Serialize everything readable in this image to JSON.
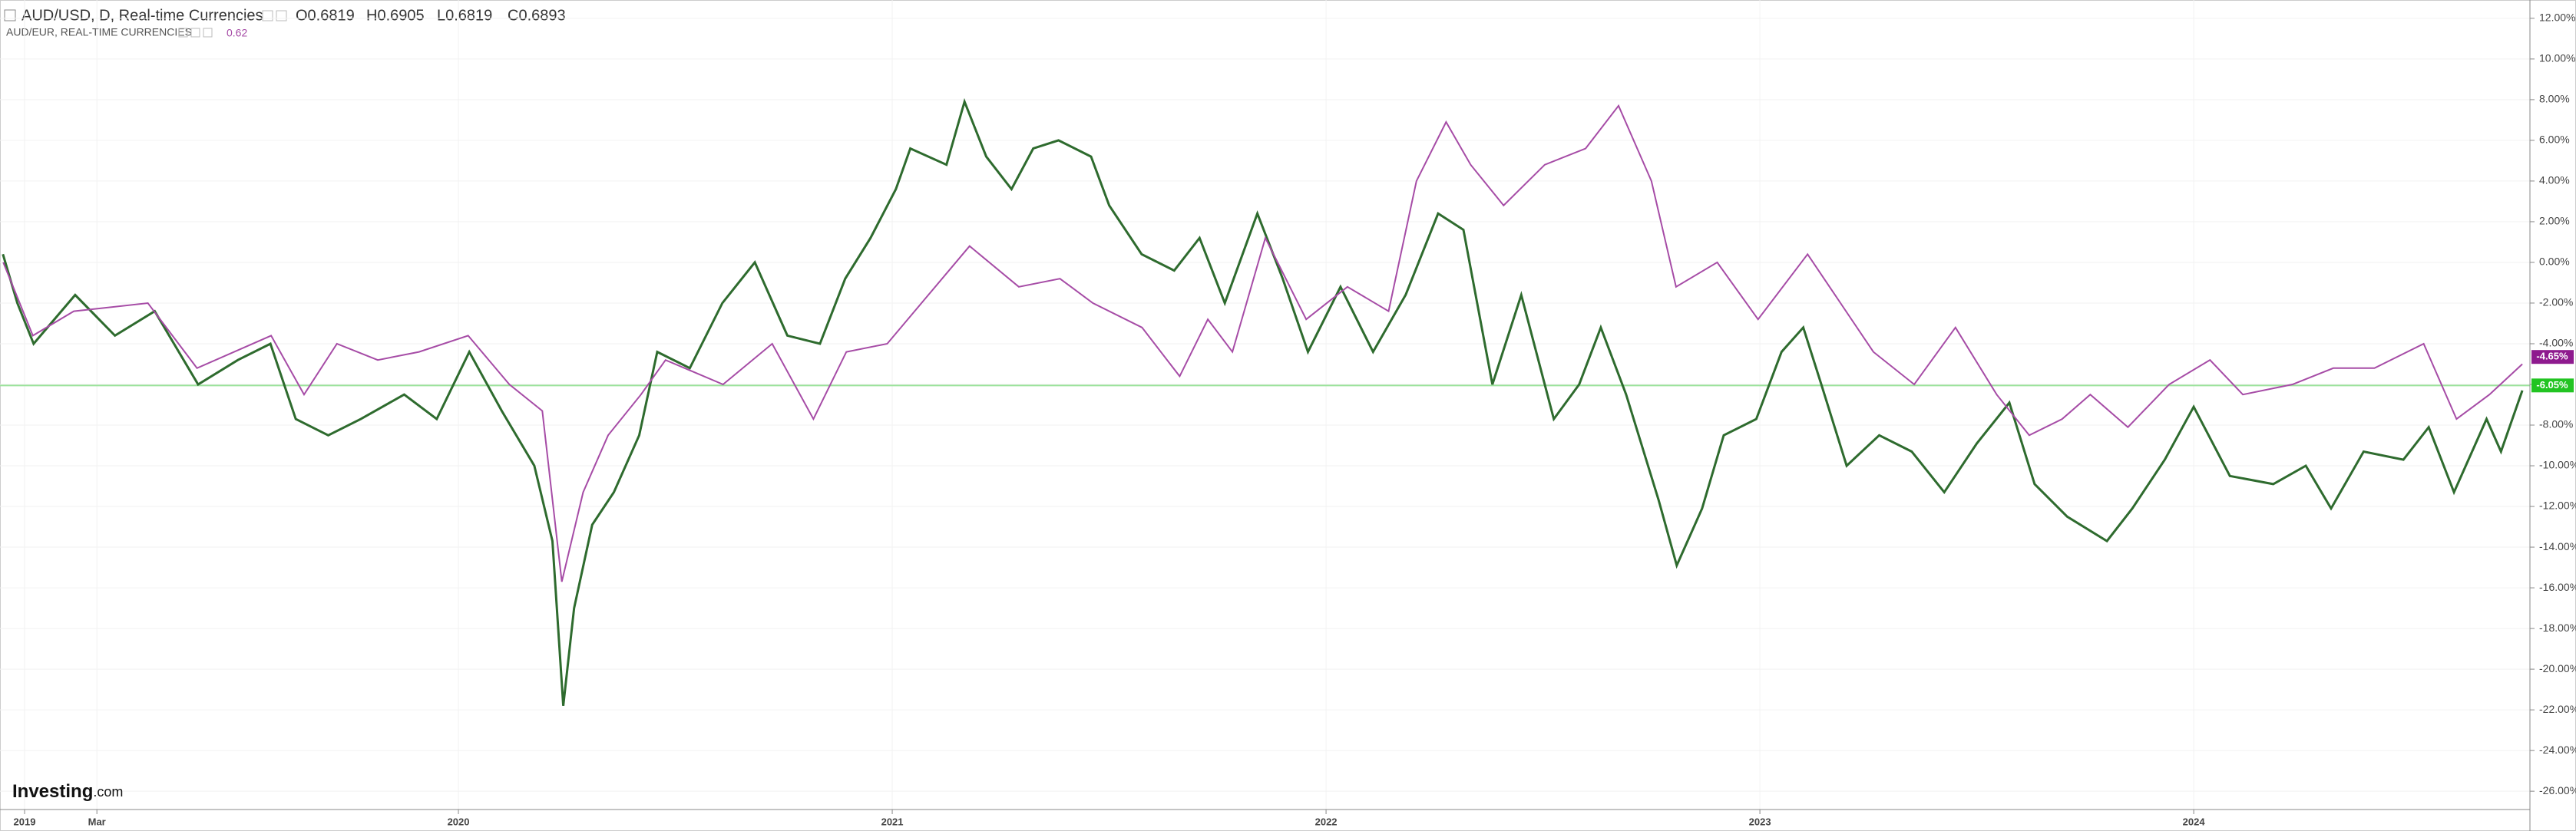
{
  "header": {
    "ohlc": [
      "O0.6819",
      "H0.6905",
      "L0.6819",
      "C0.6893"
    ],
    "aud_eur_value": "0.62"
  },
  "logo": {
    "name": "Investing",
    "suffix": ".com"
  },
  "chart_data": {
    "type": "line",
    "xlim": [
      -0.68,
      69.3
    ],
    "xticks": [
      {
        "value": 0,
        "label": "2019"
      },
      {
        "value": 2,
        "label": "Mar"
      },
      {
        "value": 12,
        "label": "2020"
      },
      {
        "value": 24,
        "label": "2021"
      },
      {
        "value": 36,
        "label": "2022"
      },
      {
        "value": 48,
        "label": "2023"
      },
      {
        "value": 60,
        "label": "2024"
      }
    ],
    "ylim": [
      -26.9,
      12.9
    ],
    "yticks": [
      {
        "value": 12,
        "label": "12.00%"
      },
      {
        "value": 10,
        "label": "10.00%"
      },
      {
        "value": 8,
        "label": "8.00%"
      },
      {
        "value": 6,
        "label": "6.00%"
      },
      {
        "value": 4,
        "label": "4.00%"
      },
      {
        "value": 2,
        "label": "2.00%"
      },
      {
        "value": 0,
        "label": "0.00%"
      },
      {
        "value": -2,
        "label": "-2.00%"
      },
      {
        "value": -4,
        "label": "-4.00%"
      },
      {
        "value": -6,
        "label": "-6.00%"
      },
      {
        "value": -8,
        "label": "-8.00%"
      },
      {
        "value": -10,
        "label": "-10.00%"
      },
      {
        "value": -12,
        "label": "-12.00%"
      },
      {
        "value": -14,
        "label": "-14.00%"
      },
      {
        "value": -16,
        "label": "-16.00%"
      },
      {
        "value": -18,
        "label": "-18.00%"
      },
      {
        "value": -20,
        "label": "-20.00%"
      },
      {
        "value": -22,
        "label": "-22.00%"
      },
      {
        "value": -24,
        "label": "-24.00%"
      },
      {
        "value": -26,
        "label": "-26.00%"
      }
    ],
    "grid": true,
    "series": [
      {
        "name": "AUD/USD, D, Real-time Currencies",
        "color": "#2e6b2e",
        "x": [
          -0.6,
          -0.2,
          0.25,
          1.4,
          2.5,
          3.6,
          4.8,
          5.9,
          6.8,
          7.5,
          8.4,
          9.3,
          10.5,
          11.4,
          12.3,
          13.2,
          14.1,
          14.6,
          14.9,
          15.2,
          15.7,
          16.3,
          17.0,
          17.5,
          18.4,
          19.3,
          20.2,
          21.1,
          22.0,
          22.7,
          23.4,
          24.1,
          24.5,
          25.5,
          26.0,
          26.6,
          27.3,
          27.9,
          28.6,
          29.5,
          30.0,
          30.9,
          31.8,
          32.5,
          33.2,
          34.1,
          34.8,
          35.5,
          36.4,
          37.3,
          38.2,
          39.1,
          39.8,
          40.6,
          41.4,
          42.3,
          43.0,
          43.6,
          44.3,
          45.2,
          45.7,
          46.4,
          47.0,
          47.9,
          48.6,
          49.2,
          49.7,
          50.4,
          51.3,
          52.2,
          53.1,
          54.0,
          54.9,
          55.6,
          56.5,
          57.6,
          58.3,
          59.2,
          60.0,
          61.0,
          62.2,
          63.1,
          63.8,
          64.7,
          65.8,
          66.5,
          67.2,
          68.1,
          68.5,
          69.09
        ],
        "values": [
          0.4,
          -2,
          -4,
          -1.6,
          -3.6,
          -2.4,
          -6,
          -4.8,
          -4,
          -7.7,
          -8.5,
          -7.7,
          -6.5,
          -7.7,
          -4.4,
          -7.3,
          -10,
          -13.7,
          -21.8,
          -17,
          -12.9,
          -11.3,
          -8.5,
          -4.4,
          -5.2,
          -2,
          0,
          -3.6,
          -4,
          -0.8,
          1.2,
          3.6,
          5.6,
          4.8,
          7.9,
          5.2,
          3.6,
          5.6,
          6,
          5.2,
          2.8,
          0.4,
          -0.4,
          1.2,
          -2,
          2.4,
          -0.8,
          -4.4,
          -1.2,
          -4.4,
          -1.6,
          2.4,
          1.6,
          -6,
          -1.6,
          -7.7,
          -6,
          -3.2,
          -6.5,
          -11.7,
          -14.9,
          -12.1,
          -8.5,
          -7.7,
          -4.4,
          -3.2,
          -6,
          -10,
          -8.5,
          -9.3,
          -11.3,
          -8.9,
          -6.9,
          -10.9,
          -12.5,
          -13.7,
          -12.1,
          -9.7,
          -7.1,
          -10.5,
          -10.9,
          -10,
          -12.1,
          -9.3,
          -9.7,
          -8.1,
          -11.3,
          -7.7,
          -9.3,
          -6.3
        ],
        "last_label": {
          "value": -6.05,
          "label": "-6.05%"
        },
        "label_color": "#22c422"
      },
      {
        "name": "AUD/EUR, REAL-TIME CURRENCIES",
        "color": "#a64ca6",
        "x": [
          -0.59,
          0.23,
          1.36,
          3.41,
          4.77,
          6.82,
          7.73,
          8.64,
          9.77,
          10.91,
          12.27,
          13.41,
          14.32,
          14.86,
          15.45,
          16.14,
          17.05,
          17.73,
          19.32,
          20.68,
          21.82,
          22.73,
          23.86,
          25,
          26.14,
          27.5,
          28.64,
          29.55,
          30.91,
          31.95,
          32.73,
          33.41,
          34.32,
          35.45,
          36.59,
          37.73,
          38.5,
          39.32,
          40,
          40.91,
          42.05,
          43.18,
          44.09,
          45,
          45.68,
          46.82,
          47.95,
          49.32,
          50.23,
          51.14,
          52.27,
          53.41,
          54.55,
          55.45,
          56.36,
          57.14,
          58.18,
          59.32,
          60.45,
          61.36,
          62.73,
          63.86,
          65,
          66.36,
          67.27,
          68.18,
          69.09
        ],
        "values": [
          0,
          -3.6,
          -2.4,
          -2,
          -5.2,
          -3.6,
          -6.5,
          -4,
          -4.8,
          -4.4,
          -3.6,
          -6,
          -7.3,
          -15.7,
          -11.3,
          -8.5,
          -6.5,
          -4.8,
          -6,
          -4,
          -7.7,
          -4.4,
          -4,
          -1.6,
          0.8,
          -1.2,
          -0.8,
          -2,
          -3.2,
          -5.6,
          -2.8,
          -4.4,
          1.2,
          -2.8,
          -1.2,
          -2.4,
          4,
          6.9,
          4.8,
          2.8,
          4.8,
          5.6,
          7.7,
          4,
          -1.2,
          0,
          -2.8,
          0.4,
          -2,
          -4.4,
          -6,
          -3.2,
          -6.5,
          -8.5,
          -7.7,
          -6.5,
          -8.1,
          -6,
          -4.8,
          -6.5,
          -6,
          -5.2,
          -5.2,
          -4,
          -7.7,
          -6.5,
          -5
        ],
        "last_label": {
          "value": -4.65,
          "label": "-4.65%"
        },
        "label_color": "#8e1a8e"
      }
    ]
  }
}
